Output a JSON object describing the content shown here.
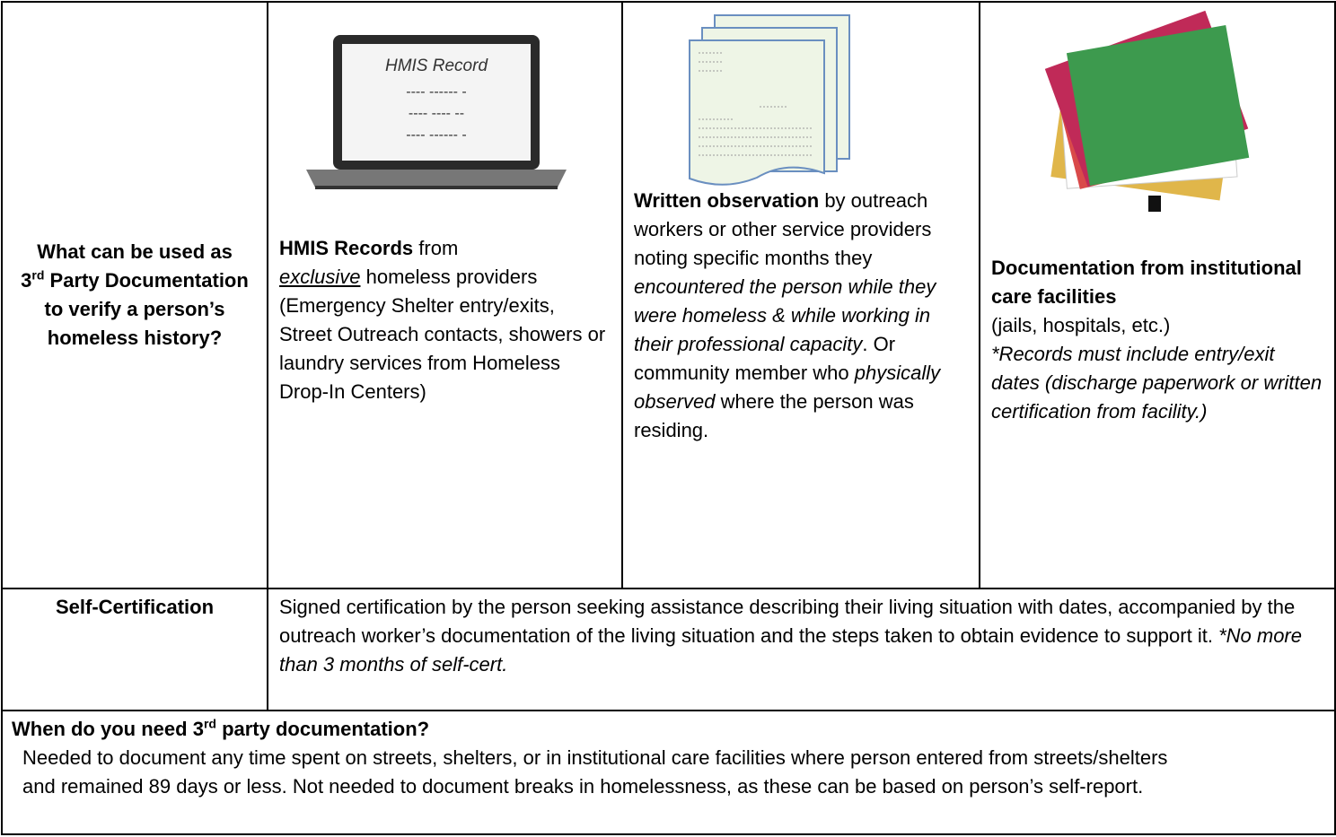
{
  "evidence": {
    "question": {
      "text_a": "What can be used as",
      "ordinal": "3",
      "ordinal_suffix": "rd",
      "text_b": "Party Documentation to verify a person’s homeless history?"
    },
    "hmis": {
      "image_title": "HMIS Record",
      "image_lines": [
        "---- ------ -",
        "---- ---- --",
        "---- ------ -"
      ],
      "bold": "HMIS Records",
      "text_a": "from",
      "underline_italic": "exclusive",
      "text_b": "homeless providers (Emergency Shelter entry/exits, Street Outreach contacts, showers or laundry services from Homeless Drop-In Centers)"
    },
    "observation": {
      "bold": "Written observation",
      "text_a": "by outreach workers or other service providers noting specific months they",
      "italic_a": "encountered the person while they were homeless & while working in their professional capacity",
      "text_b": ". Or community member who",
      "italic_b": "physically observed",
      "text_c": "where the person was residing."
    },
    "institutional": {
      "bold": "Documentation from institutional care facilities",
      "text": "(jails, hospitals, etc.)",
      "italic": "*Records must include entry/exit dates (discharge paperwork or written certification from facility.)"
    },
    "self_certification": {
      "label": "Self-Certification",
      "text": "Signed certification by the person seeking assistance describing their living situation with dates, accompanied by the outreach worker’s documentation of the living situation and the steps taken to obtain evidence to support it.",
      "italic": "*No more than 3 months of self-cert."
    },
    "when": {
      "heading_a": "When do you need",
      "ordinal": "3",
      "ordinal_suffix": "rd",
      "heading_b": "party documentation?",
      "text": "Needed to document any time spent on streets, shelters, or in institutional care facilities where person entered from streets/shelters and remained 89 days or less. Not needed to document breaks in homelessness, as these can be based on person’s self-report."
    }
  }
}
